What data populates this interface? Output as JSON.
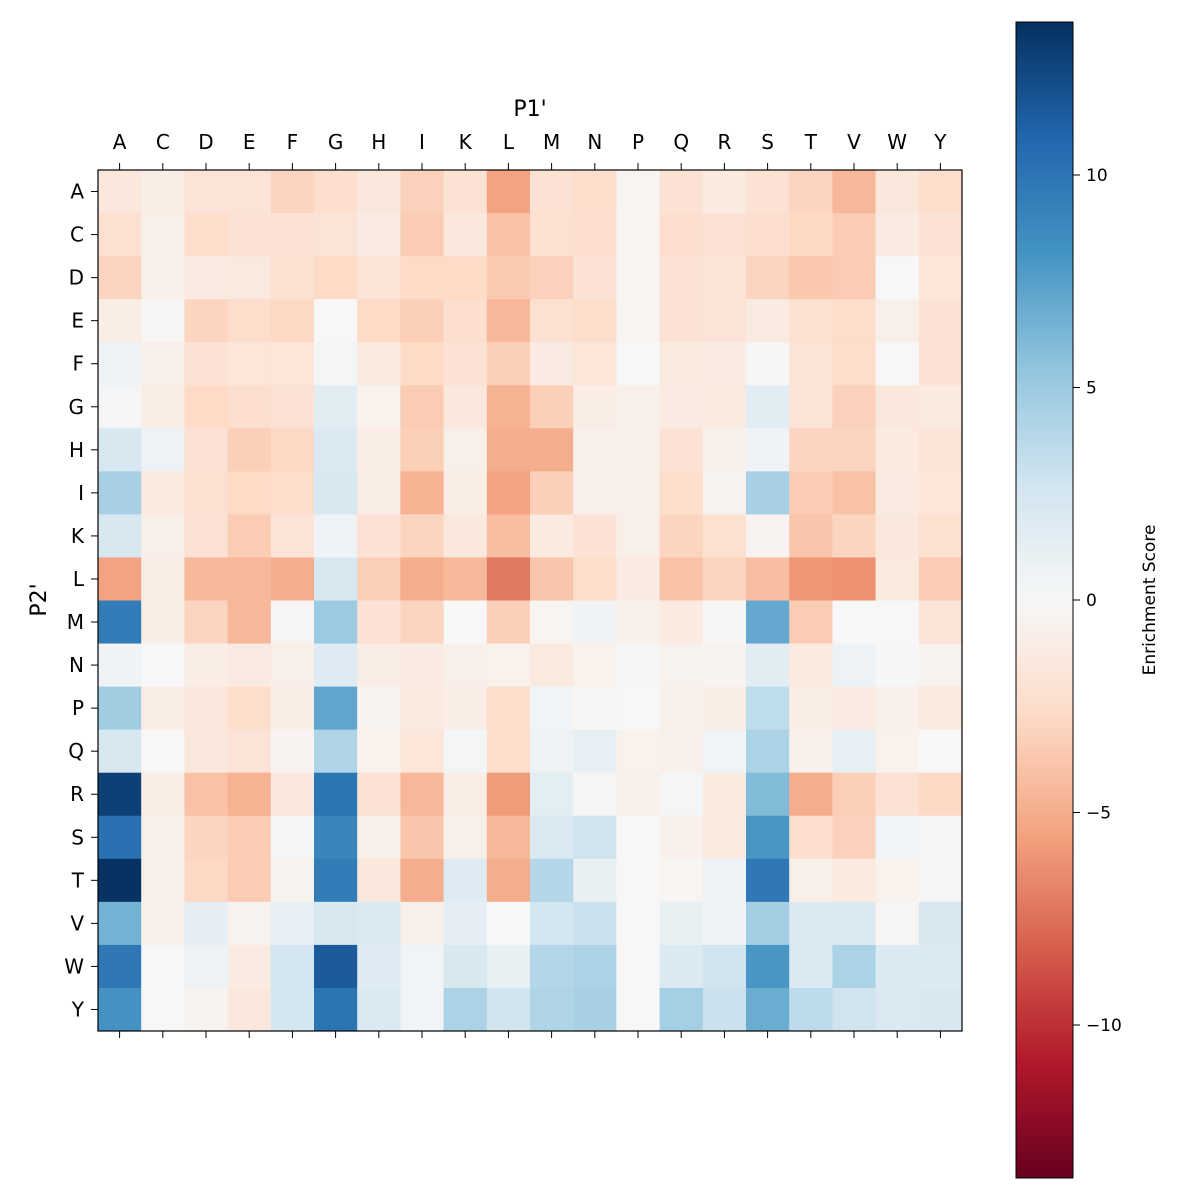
{
  "chart_data": {
    "type": "heatmap",
    "xlabel": "P1'",
    "ylabel": "P2'",
    "x_categories": [
      "A",
      "C",
      "D",
      "E",
      "F",
      "G",
      "H",
      "I",
      "K",
      "L",
      "M",
      "N",
      "P",
      "Q",
      "R",
      "S",
      "T",
      "V",
      "W",
      "Y"
    ],
    "y_categories": [
      "A",
      "C",
      "D",
      "E",
      "F",
      "G",
      "H",
      "I",
      "K",
      "L",
      "M",
      "N",
      "P",
      "Q",
      "R",
      "S",
      "T",
      "V",
      "W",
      "Y"
    ],
    "colormap": "RdBu",
    "vmin": -13.6,
    "vmax": 13.6,
    "colorbar": {
      "label": "Enrichment Score",
      "ticks": [
        10,
        5,
        0,
        -5,
        -10
      ],
      "tick_labels": [
        "10",
        "5",
        "0",
        "−5",
        "−10"
      ]
    },
    "x_axis_position": "top",
    "grid": false,
    "values": [
      [
        -1.5,
        -1,
        -1.8,
        -1.8,
        -3,
        -2.3,
        -1.5,
        -3.2,
        -2,
        -5.5,
        -2,
        -2.5,
        -0.3,
        -2,
        -1.3,
        -2,
        -3,
        -4.5,
        -1.5,
        -2.5
      ],
      [
        -2.2,
        -0.8,
        -2.5,
        -2,
        -2,
        -1.8,
        -1.2,
        -3.5,
        -1.5,
        -4,
        -2.2,
        -2.3,
        -0.3,
        -2.3,
        -2,
        -2.3,
        -2.8,
        -3.5,
        -1.2,
        -2
      ],
      [
        -3,
        -0.8,
        -1.2,
        -1.4,
        -2.2,
        -2.7,
        -1.8,
        -2.7,
        -2.7,
        -3.6,
        -3.2,
        -2,
        -0.3,
        -2,
        -1.8,
        -3,
        -3.7,
        -3.5,
        0,
        -1.7
      ],
      [
        -1,
        -0.1,
        -3,
        -2.5,
        -2.8,
        0,
        -2.7,
        -3.3,
        -2.3,
        -4.5,
        -2.2,
        -2.5,
        -0.3,
        -2,
        -1.8,
        -1.2,
        -2.2,
        -2.5,
        -0.8,
        -2
      ],
      [
        0.8,
        -0.8,
        -2,
        -1.7,
        -1.7,
        0.2,
        -1.3,
        -2.7,
        -2,
        -3.3,
        -1.2,
        -1.7,
        0,
        -1.3,
        -1.2,
        -0.1,
        -1.8,
        -2.5,
        0,
        -2
      ],
      [
        0.3,
        -1,
        -2.7,
        -2.3,
        -2,
        1.5,
        -0.6,
        -3.5,
        -1.5,
        -4.8,
        -3.3,
        -1,
        -0.7,
        -1.2,
        -1.3,
        1.5,
        -1.8,
        -3.2,
        -1.5,
        -1.3
      ],
      [
        2.2,
        0.8,
        -2,
        -3.3,
        -2.8,
        2,
        -1,
        -3.4,
        -0.8,
        -5,
        -5,
        -0.7,
        -0.7,
        -2,
        -0.7,
        0.6,
        -3,
        -3,
        -1.3,
        -1.8
      ],
      [
        4.5,
        -1.3,
        -2.2,
        -2.7,
        -2.5,
        2.2,
        -1,
        -4.8,
        -1,
        -5.5,
        -3.3,
        -0.7,
        -0.8,
        -2.5,
        -0.5,
        4.5,
        -3.5,
        -4,
        -1.2,
        -1.7
      ],
      [
        2.2,
        -0.8,
        -2,
        -3.5,
        -1.8,
        0.6,
        -2,
        -3,
        -1.5,
        -4.3,
        -1.3,
        -2,
        -0.8,
        -3,
        -2.2,
        -0.4,
        -3.8,
        -3,
        -1.5,
        -2.2
      ],
      [
        -5.5,
        -1,
        -4.5,
        -4.5,
        -5,
        2.2,
        -3.3,
        -5,
        -4.5,
        -7.2,
        -3.8,
        -2.5,
        -1.2,
        -4,
        -3,
        -4.2,
        -6,
        -6.2,
        -1.3,
        -3.5
      ],
      [
        9.5,
        -1,
        -3,
        -4.5,
        -0.2,
        5,
        -2,
        -3,
        0,
        -3.3,
        -0.3,
        0.6,
        -0.7,
        -1.3,
        -0.1,
        7,
        -3.5,
        0,
        0,
        -1.8
      ],
      [
        0.6,
        0,
        -1,
        -1.2,
        -0.8,
        1.8,
        -1,
        -1.2,
        -0.8,
        -0.6,
        -1.4,
        -0.6,
        0.1,
        -0.5,
        -0.4,
        1.5,
        -1.3,
        0.8,
        0.1,
        -0.5
      ],
      [
        4.8,
        -1,
        -1.6,
        -2.5,
        -1,
        7.2,
        -0.4,
        -1.3,
        -1,
        -2.5,
        0.5,
        -0.2,
        0,
        -0.7,
        -1,
        3.5,
        -1,
        -1.2,
        -0.7,
        -1.3
      ],
      [
        2.3,
        0,
        -1.5,
        -1.8,
        -0.4,
        4.2,
        -0.6,
        -1.7,
        0.3,
        -2.5,
        0.7,
        1.2,
        -0.6,
        -0.7,
        0.5,
        4.3,
        -0.7,
        1.2,
        -0.6,
        0
      ],
      [
        12.8,
        -1,
        -4,
        -4.8,
        -1.5,
        10,
        -2,
        -4.5,
        -1,
        -5.8,
        1.4,
        -0.2,
        -0.7,
        0.3,
        -1.3,
        6,
        -5,
        -3.3,
        -2,
        -2.8
      ],
      [
        10.2,
        -0.8,
        -3,
        -3.5,
        0.3,
        9,
        -0.8,
        -3.8,
        -0.8,
        -4.5,
        2,
        2.8,
        0,
        -0.7,
        -1.3,
        8,
        -2.3,
        -3.2,
        0.4,
        0.3
      ],
      [
        13.5,
        -0.8,
        -2.8,
        -3.5,
        -0.5,
        9.5,
        -1.5,
        -5,
        1.8,
        -5,
        4,
        1,
        0,
        -0.3,
        0.8,
        9.8,
        -0.8,
        -1.3,
        -0.6,
        -0.2
      ],
      [
        6.5,
        -0.8,
        1.3,
        -0.5,
        1.2,
        2.3,
        2,
        -0.8,
        1.3,
        0,
        2.5,
        3,
        0,
        1,
        0.6,
        4.7,
        2,
        2,
        -0.2,
        2.2
      ],
      [
        9.8,
        0,
        0.8,
        -1.2,
        2.5,
        11.5,
        1.8,
        0.4,
        2.3,
        1,
        4,
        4.3,
        0,
        2,
        2.7,
        8,
        2,
        4.3,
        2,
        2
      ],
      [
        8.2,
        0,
        -0.4,
        -1.5,
        2.5,
        10,
        2,
        0.4,
        4.3,
        2.7,
        4.2,
        4.5,
        0,
        4.6,
        3,
        6.8,
        3.6,
        2.8,
        2,
        2.3
      ]
    ]
  }
}
